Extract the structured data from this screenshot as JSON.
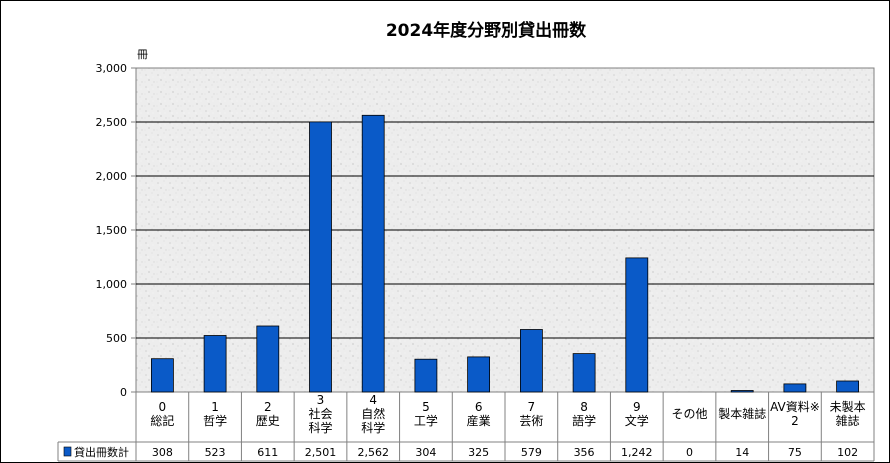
{
  "chart_data": {
    "type": "bar",
    "title": "2024年度分野別貸出冊数",
    "y_unit_label": "冊",
    "ylim": [
      0,
      3000
    ],
    "y_ticks": [
      "0",
      "500",
      "1,000",
      "1,500",
      "2,000",
      "2,500",
      "3,000"
    ],
    "grid": true,
    "categories": [
      [
        "0",
        "総記"
      ],
      [
        "1",
        "哲学"
      ],
      [
        "2",
        "歴史"
      ],
      [
        "3",
        "社会",
        "科学"
      ],
      [
        "4",
        "自然",
        "科学"
      ],
      [
        "5",
        "工学"
      ],
      [
        "6",
        "産業"
      ],
      [
        "7",
        "芸術"
      ],
      [
        "8",
        "語学"
      ],
      [
        "9",
        "文学"
      ],
      [
        "その他"
      ],
      [
        "製本雑誌"
      ],
      [
        "AV資料※",
        "2"
      ],
      [
        "未製本",
        "雑誌"
      ]
    ],
    "series": [
      {
        "name": "貸出冊数計",
        "color": "#0a5ac8",
        "values": [
          308,
          523,
          611,
          2501,
          2562,
          304,
          325,
          579,
          356,
          1242,
          0,
          14,
          75,
          102
        ],
        "labels": [
          "308",
          "523",
          "611",
          "2,501",
          "2,562",
          "304",
          "325",
          "579",
          "356",
          "1,242",
          "0",
          "14",
          "75",
          "102"
        ]
      }
    ],
    "legend_position": "data-table"
  }
}
